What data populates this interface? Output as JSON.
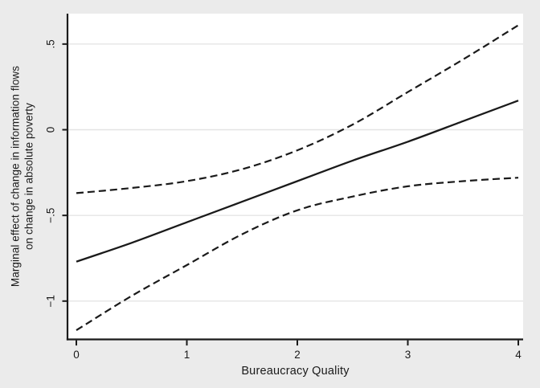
{
  "colors": {
    "background": "#ebebeb",
    "plot_background": "#ffffff",
    "gridline": "#e4e4e4",
    "axis": "#1a1a1a",
    "line": "#1a1a1a",
    "text": "#1a1a1a"
  },
  "chart_data": {
    "type": "line",
    "title": "",
    "xlabel": "Bureaucracy Quality",
    "ylabel_lines": [
      "Marginal effect of change in information flows",
      "on change in absolute poverty"
    ],
    "x": [
      0,
      0.5,
      1,
      1.5,
      2,
      2.5,
      3,
      3.5,
      4
    ],
    "series": [
      {
        "name": "marginal-effect",
        "style": "solid",
        "values": [
          -0.77,
          -0.66,
          -0.54,
          -0.42,
          -0.3,
          -0.18,
          -0.07,
          0.05,
          0.17
        ]
      },
      {
        "name": "ci-upper",
        "style": "dashed",
        "values": [
          -0.37,
          -0.34,
          -0.3,
          -0.23,
          -0.12,
          0.03,
          0.22,
          0.41,
          0.61
        ]
      },
      {
        "name": "ci-lower",
        "style": "dashed",
        "values": [
          -1.17,
          -0.97,
          -0.79,
          -0.61,
          -0.47,
          -0.39,
          -0.33,
          -0.3,
          -0.28
        ]
      }
    ],
    "xticks": {
      "values": [
        0,
        1,
        2,
        3,
        4
      ],
      "labels": [
        "0",
        "1",
        "2",
        "3",
        "4"
      ]
    },
    "yticks": {
      "values": [
        0.5,
        0,
        -0.5,
        -1
      ],
      "labels": [
        ".5",
        "0",
        "−.5",
        "−1"
      ]
    },
    "xlim": [
      0,
      4
    ],
    "ylim": [
      -1.23,
      0.69
    ],
    "grid": "horizontal",
    "legend": "none"
  }
}
